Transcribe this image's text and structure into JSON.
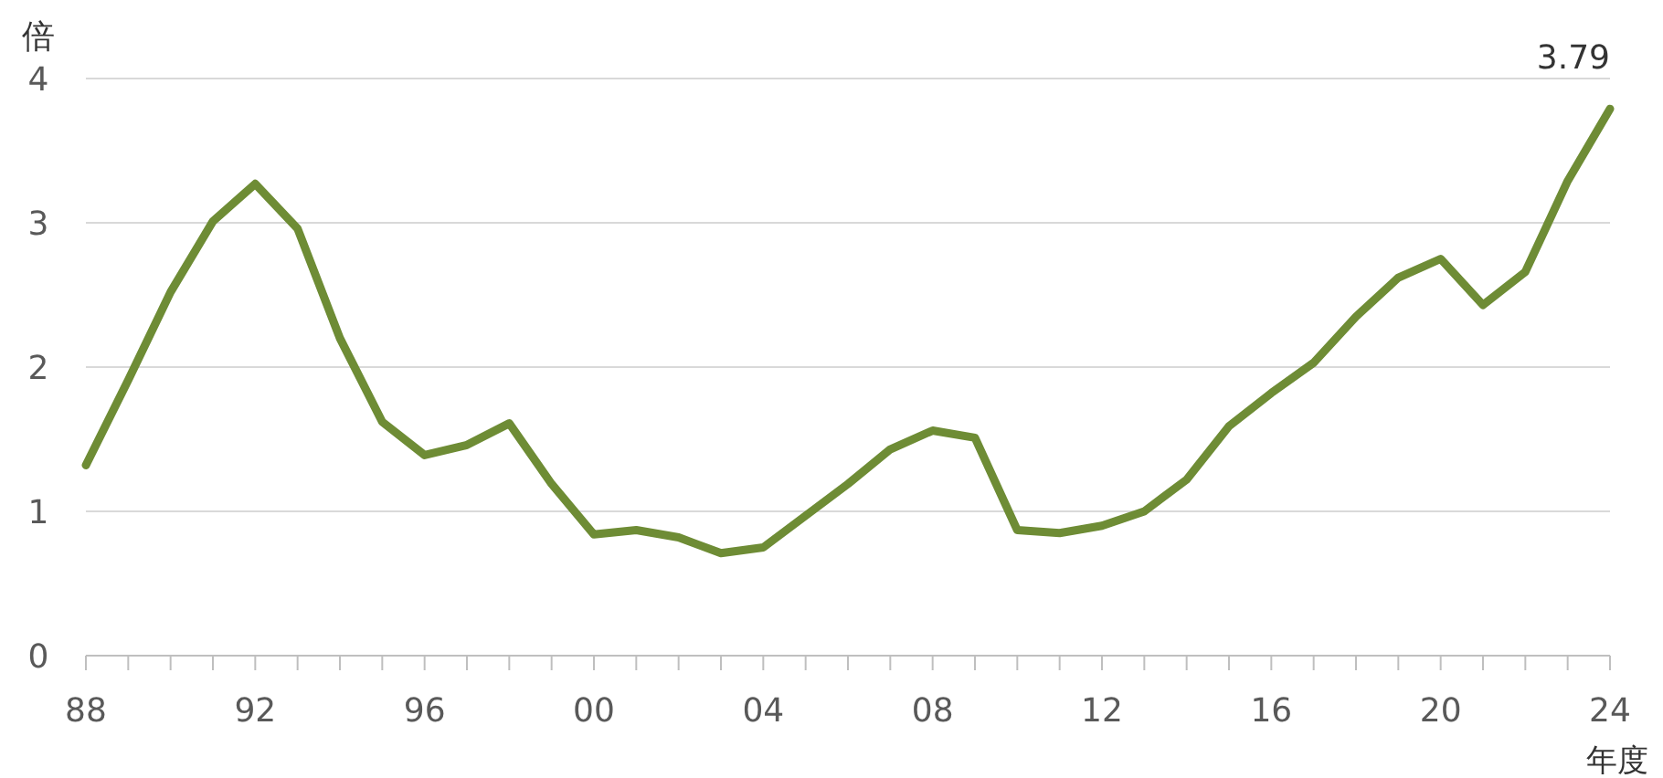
{
  "chart_data": {
    "type": "line",
    "xlabel": "年度",
    "ylabel": "倍",
    "x": [
      1988,
      1989,
      1990,
      1991,
      1992,
      1993,
      1994,
      1995,
      1996,
      1997,
      1998,
      1999,
      2000,
      2001,
      2002,
      2003,
      2004,
      2005,
      2006,
      2007,
      2008,
      2009,
      2010,
      2011,
      2012,
      2013,
      2014,
      2015,
      2016,
      2017,
      2018,
      2019,
      2020,
      2021,
      2022,
      2023,
      2024
    ],
    "series": [
      {
        "color": "#6e8c35",
        "values": [
          1.32,
          1.91,
          2.52,
          3.01,
          3.27,
          2.96,
          2.2,
          1.62,
          1.39,
          1.46,
          1.61,
          1.19,
          0.84,
          0.87,
          0.82,
          0.71,
          0.75,
          0.97,
          1.19,
          1.43,
          1.56,
          1.51,
          0.87,
          0.85,
          0.9,
          1.0,
          1.22,
          1.59,
          1.82,
          2.03,
          2.35,
          2.62,
          2.75,
          2.43,
          2.66,
          3.29,
          3.79
        ]
      }
    ],
    "xlim": [
      1988,
      2024
    ],
    "xticks": [
      {
        "value": 1988,
        "label": "88"
      },
      {
        "value": 1989,
        "label": null
      },
      {
        "value": 1990,
        "label": null
      },
      {
        "value": 1991,
        "label": null
      },
      {
        "value": 1992,
        "label": "92"
      },
      {
        "value": 1993,
        "label": null
      },
      {
        "value": 1994,
        "label": null
      },
      {
        "value": 1995,
        "label": null
      },
      {
        "value": 1996,
        "label": "96"
      },
      {
        "value": 1997,
        "label": null
      },
      {
        "value": 1998,
        "label": null
      },
      {
        "value": 1999,
        "label": null
      },
      {
        "value": 2000,
        "label": "00"
      },
      {
        "value": 2001,
        "label": null
      },
      {
        "value": 2002,
        "label": null
      },
      {
        "value": 2003,
        "label": null
      },
      {
        "value": 2004,
        "label": "04"
      },
      {
        "value": 2005,
        "label": null
      },
      {
        "value": 2006,
        "label": null
      },
      {
        "value": 2007,
        "label": null
      },
      {
        "value": 2008,
        "label": "08"
      },
      {
        "value": 2009,
        "label": null
      },
      {
        "value": 2010,
        "label": null
      },
      {
        "value": 2011,
        "label": null
      },
      {
        "value": 2012,
        "label": "12"
      },
      {
        "value": 2013,
        "label": null
      },
      {
        "value": 2014,
        "label": null
      },
      {
        "value": 2015,
        "label": null
      },
      {
        "value": 2016,
        "label": "16"
      },
      {
        "value": 2017,
        "label": null
      },
      {
        "value": 2018,
        "label": null
      },
      {
        "value": 2019,
        "label": null
      },
      {
        "value": 2020,
        "label": "20"
      },
      {
        "value": 2021,
        "label": null
      },
      {
        "value": 2022,
        "label": null
      },
      {
        "value": 2023,
        "label": null
      },
      {
        "value": 2024,
        "label": "24"
      }
    ],
    "ylim": [
      0,
      4
    ],
    "yticks": [
      0,
      1,
      2,
      3,
      4
    ],
    "grid": "y",
    "marker": "none",
    "line_style": "solid",
    "annotations": [
      {
        "text": "3.79",
        "x": 2024,
        "y": 3.79
      }
    ]
  }
}
